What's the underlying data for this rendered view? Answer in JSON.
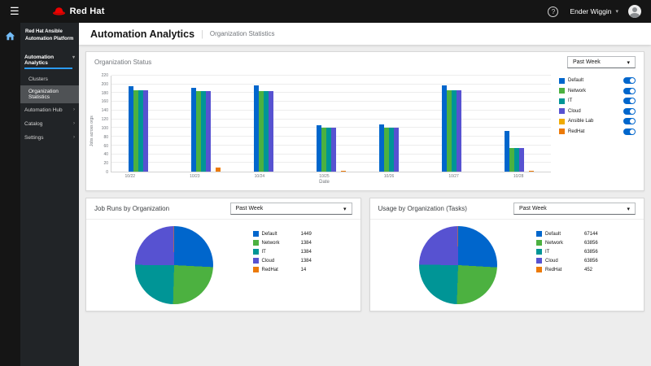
{
  "topbar": {
    "brand": "Red Hat",
    "user_name": "Ender Wiggin"
  },
  "sidebar": {
    "platform_title": "Red Hat Ansible Automation Platform",
    "nav": [
      {
        "label": "Automation Analytics",
        "state": "expanded",
        "active": true,
        "children": [
          {
            "label": "Clusters",
            "selected": false
          },
          {
            "label": "Organization Statistics",
            "selected": true
          }
        ]
      },
      {
        "label": "Automation Hub",
        "state": "collapsed"
      },
      {
        "label": "Catalog",
        "state": "collapsed"
      },
      {
        "label": "Settings",
        "state": "collapsed"
      }
    ]
  },
  "header": {
    "title": "Automation Analytics",
    "divider": "|",
    "subtitle": "Organization Statistics"
  },
  "panels": {
    "org_status": {
      "title": "Organization Status",
      "period": "Past Week"
    },
    "job_runs": {
      "title": "Job Runs by Organization",
      "period": "Past Week"
    },
    "usage": {
      "title": "Usage by Organization (Tasks)",
      "period": "Past Week"
    }
  },
  "org_legend": [
    {
      "label": "Default",
      "color": "#0066CC",
      "enabled": true
    },
    {
      "label": "Network",
      "color": "#4CB140",
      "enabled": true
    },
    {
      "label": "IT",
      "color": "#009596",
      "enabled": true
    },
    {
      "label": "Cloud",
      "color": "#5752D1",
      "enabled": true
    },
    {
      "label": "Ansible Lab",
      "color": "#F0AB00",
      "enabled": true
    },
    {
      "label": "RedHat",
      "color": "#EC7A08",
      "enabled": true
    }
  ],
  "chart_data": [
    {
      "type": "bar",
      "title": "Organization Status",
      "categories": [
        "10/22",
        "10/23",
        "10/24",
        "10/25",
        "10/26",
        "10/27",
        "10/28"
      ],
      "series": [
        {
          "name": "Default",
          "color": "#0066CC",
          "values": [
            195,
            192,
            197,
            107,
            109,
            197,
            93
          ]
        },
        {
          "name": "Network",
          "color": "#4CB140",
          "values": [
            186,
            185,
            185,
            101,
            100,
            186,
            55
          ]
        },
        {
          "name": "IT",
          "color": "#009596",
          "values": [
            186,
            185,
            185,
            101,
            100,
            186,
            55
          ]
        },
        {
          "name": "Cloud",
          "color": "#5752D1",
          "values": [
            186,
            185,
            185,
            101,
            100,
            186,
            55
          ]
        },
        {
          "name": "Ansible Lab",
          "color": "#F0AB00",
          "values": [
            0,
            0,
            0,
            0,
            0,
            0,
            0
          ]
        },
        {
          "name": "RedHat",
          "color": "#EC7A08",
          "values": [
            0,
            10,
            0,
            2,
            0,
            0,
            2
          ]
        }
      ],
      "xlabel": "Date",
      "ylabel": "Jobs across orgs",
      "ylim": [
        0,
        220
      ],
      "ytick_step": 20,
      "grid": true,
      "legend_position": "right"
    },
    {
      "type": "pie",
      "title": "Job Runs by Organization",
      "labels": [
        "Default",
        "Network",
        "IT",
        "Cloud",
        "RedHat"
      ],
      "values": [
        1449,
        1384,
        1384,
        1384,
        14
      ],
      "colors": [
        "#0066CC",
        "#4CB140",
        "#009596",
        "#5752D1",
        "#EC7A08"
      ],
      "legend_position": "right"
    },
    {
      "type": "pie",
      "title": "Usage by Organization (Tasks)",
      "labels": [
        "Default",
        "Network",
        "IT",
        "Cloud",
        "RedHat"
      ],
      "values": [
        67144,
        63856,
        63856,
        63856,
        452
      ],
      "colors": [
        "#0066CC",
        "#4CB140",
        "#009596",
        "#5752D1",
        "#EC7A08"
      ],
      "legend_position": "right"
    }
  ]
}
